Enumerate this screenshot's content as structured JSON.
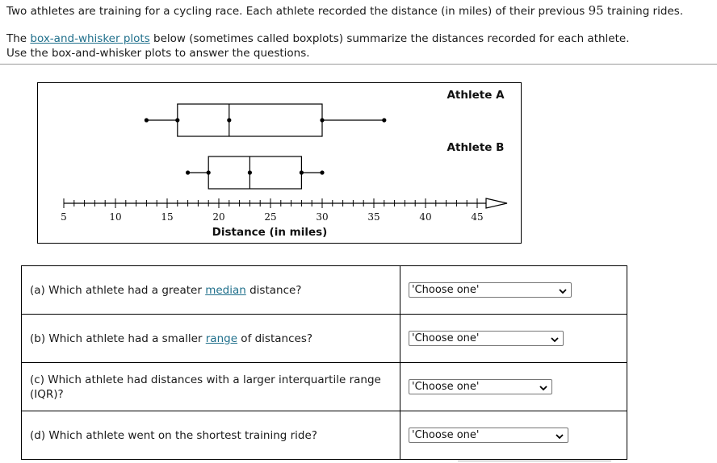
{
  "intro": {
    "line1_a": "Two athletes are training for a cycling race. Each athlete recorded the distance (in miles) of their previous ",
    "line1_num": "95",
    "line1_b": " training rides.",
    "line2_a": "The ",
    "line2_link": "box-and-whisker plots",
    "line2_b": " below (sometimes called boxplots) summarize the distances recorded for each athlete.",
    "line3": "Use the box-and-whisker plots to answer the questions."
  },
  "chart_data": {
    "type": "boxplot",
    "xlabel_prefix": "Distance ",
    "xlabel_unit": "(in miles)",
    "xlim": [
      5,
      45
    ],
    "ticks": [
      "5",
      "10",
      "15",
      "20",
      "25",
      "30",
      "35",
      "40",
      "45"
    ],
    "series": [
      {
        "name": "Athlete A",
        "min": 13,
        "q1": 16,
        "median": 21,
        "q3": 30,
        "max": 36
      },
      {
        "name": "Athlete B",
        "min": 17,
        "q1": 19,
        "median": 23,
        "q3": 28,
        "max": 30
      }
    ]
  },
  "questions": [
    {
      "prefix": "(a) Which athlete had a greater ",
      "link": "median",
      "suffix": " distance?",
      "select": "'Choose one'"
    },
    {
      "prefix": "(b) Which athlete had a smaller ",
      "link": "range",
      "suffix": " of distances?",
      "select": "'Choose one'"
    },
    {
      "prefix": "(c) Which athlete had distances with a larger interquartile range (IQR)?",
      "link": "",
      "suffix": "",
      "select": "'Choose one'"
    },
    {
      "prefix": "(d) Which athlete went on the shortest training ride?",
      "link": "",
      "suffix": "",
      "select": "'Choose one'"
    }
  ]
}
